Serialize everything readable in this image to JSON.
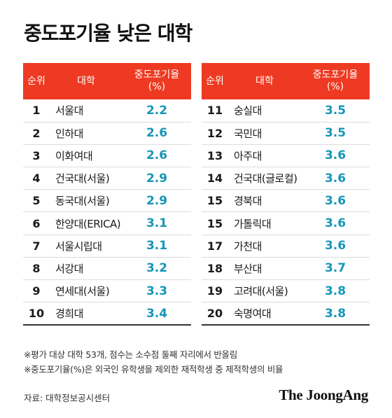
{
  "title": "중도포기율 낮은 대학",
  "headers": {
    "rank": "순위",
    "univ": "대학",
    "rate_line1": "중도포기율",
    "rate_line2": "(%)"
  },
  "left_rows": [
    {
      "rank": "1",
      "univ": "서울대",
      "rate": "2.2"
    },
    {
      "rank": "2",
      "univ": "인하대",
      "rate": "2.6"
    },
    {
      "rank": "3",
      "univ": "이화여대",
      "rate": "2.6"
    },
    {
      "rank": "4",
      "univ": "건국대(서울)",
      "rate": "2.9"
    },
    {
      "rank": "5",
      "univ": "동국대(서울)",
      "rate": "2.9"
    },
    {
      "rank": "6",
      "univ": "한양대(ERICA)",
      "rate": "3.1"
    },
    {
      "rank": "7",
      "univ": "서울시립대",
      "rate": "3.1"
    },
    {
      "rank": "8",
      "univ": "서강대",
      "rate": "3.2"
    },
    {
      "rank": "9",
      "univ": "연세대(서울)",
      "rate": "3.3"
    },
    {
      "rank": "10",
      "univ": "경희대",
      "rate": "3.4"
    }
  ],
  "right_rows": [
    {
      "rank": "11",
      "univ": "숭실대",
      "rate": "3.5"
    },
    {
      "rank": "12",
      "univ": "국민대",
      "rate": "3.5"
    },
    {
      "rank": "13",
      "univ": "아주대",
      "rate": "3.6"
    },
    {
      "rank": "14",
      "univ": "건국대(글로컬)",
      "rate": "3.6"
    },
    {
      "rank": "15",
      "univ": "경북대",
      "rate": "3.6"
    },
    {
      "rank": "15",
      "univ": "가톨릭대",
      "rate": "3.6"
    },
    {
      "rank": "17",
      "univ": "가천대",
      "rate": "3.6"
    },
    {
      "rank": "18",
      "univ": "부산대",
      "rate": "3.7"
    },
    {
      "rank": "19",
      "univ": "고려대(서울)",
      "rate": "3.8"
    },
    {
      "rank": "20",
      "univ": "숙명여대",
      "rate": "3.8"
    }
  ],
  "notes": [
    "※평가 대상 대학 53개, 점수는 소수점 둘째 자리에서 반올림",
    "※중도포기율(%)은 외국인 유학생을 제외한 재적학생 중 제적학생의 비율"
  ],
  "source": "자료: 대학정보공시센터",
  "logo": "The JoongAng",
  "colors": {
    "header_bg": "#ee3a22",
    "rate_text": "#1596b8"
  }
}
